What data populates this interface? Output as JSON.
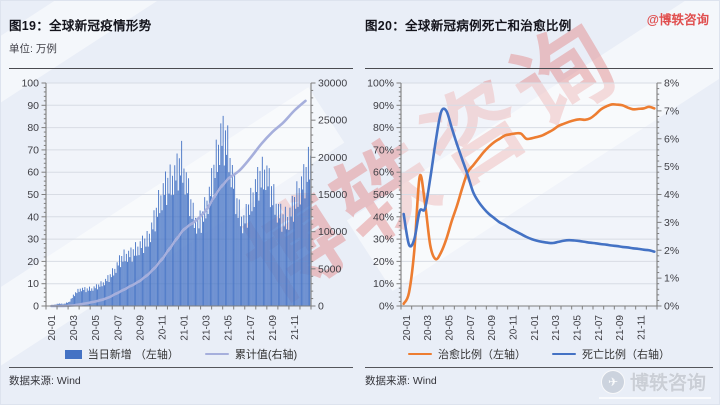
{
  "page": {
    "bg_color": "#E9EEF7",
    "watermark_topright": "@博轶咨询",
    "watermark_diagonal": "博轶咨询",
    "watermark_bottomright": "博轶咨询",
    "watermark_red_color": "#E04F4F"
  },
  "chart_data": [
    {
      "panel": "left",
      "type": "bar",
      "title": "图19：全球新冠疫情形势",
      "subtitle": "单位: 万例",
      "source": "数据来源: Wind",
      "legend_position": "bottom",
      "x_tick_labels": [
        "20-01",
        "20-03",
        "20-05",
        "20-07",
        "20-09",
        "20-11",
        "21-01",
        "21-03",
        "21-05",
        "21-07",
        "21-09",
        "21-11"
      ],
      "left_axis": {
        "min": 0,
        "max": 100,
        "step": 10,
        "tick_labels": [
          "0",
          "10",
          "20",
          "30",
          "40",
          "50",
          "60",
          "70",
          "80",
          "90",
          "100"
        ]
      },
      "right_axis": {
        "min": 0,
        "max": 30000,
        "step": 5000,
        "tick_labels": [
          "0",
          "5000",
          "10000",
          "15000",
          "20000",
          "25000",
          "30000"
        ]
      },
      "series": [
        {
          "name": "当日新增 （左轴）",
          "type": "bar",
          "axis": "left",
          "color": "#4472C4",
          "sampling": "half-month",
          "values": [
            0.05,
            0.2,
            1.2,
            1.0,
            2.0,
            6.0,
            8.3,
            8.0,
            8.3,
            9.5,
            11,
            13.5,
            17,
            22,
            24.5,
            25,
            27.5,
            30,
            32,
            40,
            50,
            57,
            60,
            64,
            70,
            58,
            44,
            39,
            45,
            54,
            68,
            82,
            80,
            64,
            47,
            40,
            47,
            56,
            62,
            65,
            55,
            47,
            42,
            42,
            49,
            56,
            62,
            71
          ]
        },
        {
          "name": "累计值(右轴)",
          "type": "line",
          "axis": "right",
          "color": "#A6AFDC",
          "sampling": "month",
          "values": [
            1,
            9,
            86,
            320,
            620,
            1040,
            1770,
            2550,
            3390,
            4600,
            6300,
            8350,
            10300,
            11400,
            12900,
            15300,
            17100,
            18200,
            19900,
            21800,
            23400,
            24700,
            26300,
            27600
          ]
        }
      ]
    },
    {
      "panel": "right",
      "type": "line",
      "title": "图20：全球新冠病例死亡和治愈比例",
      "subtitle": "",
      "source": "数据来源: Wind",
      "legend_position": "bottom",
      "x_tick_labels": [
        "20-01",
        "20-03",
        "20-05",
        "20-07",
        "20-09",
        "20-11",
        "21-01",
        "21-03",
        "21-05",
        "21-07",
        "21-09",
        "21-11"
      ],
      "left_axis": {
        "min": 0,
        "max": 100,
        "step": 10,
        "suffix": "%",
        "tick_labels": [
          "0%",
          "10%",
          "20%",
          "30%",
          "40%",
          "50%",
          "60%",
          "70%",
          "80%",
          "90%",
          "100%"
        ]
      },
      "right_axis": {
        "min": 0,
        "max": 8,
        "step": 1,
        "suffix": "%",
        "tick_labels": [
          "0%",
          "1%",
          "2%",
          "3%",
          "4%",
          "5%",
          "6%",
          "7%",
          "8%"
        ]
      },
      "series": [
        {
          "name": "治愈比例（左轴）",
          "type": "line",
          "axis": "left",
          "color": "#ED7D31",
          "sampling": "half-month",
          "values": [
            1,
            6,
            25,
            58,
            46,
            27,
            21,
            24,
            30,
            38,
            45,
            53,
            60,
            63,
            66,
            69,
            71.5,
            73.5,
            75,
            76.5,
            77,
            77.4,
            77.3,
            75,
            75.2,
            75.8,
            76.5,
            77.7,
            79,
            80.7,
            81.7,
            82.6,
            83.3,
            83.7,
            83.5,
            84.2,
            86,
            88.2,
            89.5,
            90.4,
            90.3,
            90,
            89,
            88.2,
            88.4,
            88.6,
            89.3,
            88.6
          ]
        },
        {
          "name": "死亡比例（右轴）",
          "type": "line",
          "axis": "right",
          "color": "#4472C4",
          "sampling": "half-month",
          "values": [
            3.3,
            2.2,
            2.4,
            3.4,
            3.5,
            4.6,
            5.9,
            6.95,
            7.0,
            6.4,
            5.8,
            5.25,
            4.7,
            4.1,
            3.75,
            3.5,
            3.3,
            3.15,
            3.0,
            2.9,
            2.78,
            2.68,
            2.58,
            2.48,
            2.4,
            2.34,
            2.3,
            2.27,
            2.26,
            2.3,
            2.34,
            2.36,
            2.35,
            2.33,
            2.3,
            2.27,
            2.25,
            2.22,
            2.2,
            2.17,
            2.15,
            2.12,
            2.1,
            2.07,
            2.05,
            2.02,
            2.0,
            1.95
          ]
        }
      ]
    }
  ]
}
